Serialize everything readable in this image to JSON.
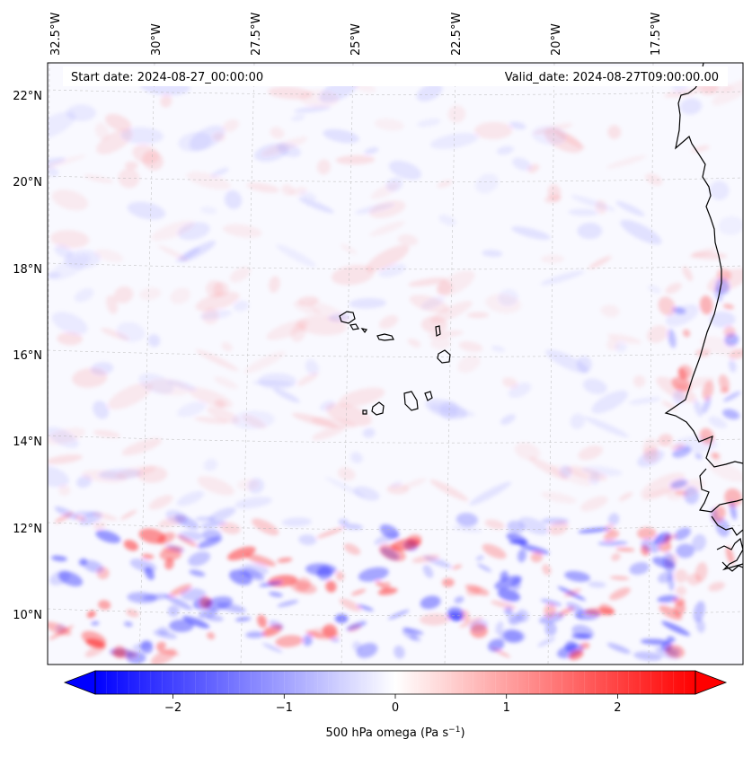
{
  "map": {
    "start_date": "Start date: 2024-08-27_00:00:00",
    "valid_date": "Valid_date: 2024-08-27T09:00:00.00",
    "lon_labels": [
      "32.5°W",
      "30°W",
      "27.5°W",
      "25°W",
      "22.5°W",
      "20°W",
      "17.5°W"
    ],
    "lat_labels": [
      "22°N",
      "20°N",
      "18°N",
      "16°N",
      "14°N",
      "12°N",
      "10°N"
    ],
    "field_colors": {
      "negative": "#0000ff",
      "zero": "#ffffff",
      "positive": "#ff0000"
    }
  },
  "colorbar": {
    "label": "500 hPa omega (Pa s",
    "label_superscript": "−1",
    "label_suffix": ")",
    "min": -2.7,
    "max": 2.7,
    "ticks": [
      {
        "value": -2,
        "label": "−2"
      },
      {
        "value": -1,
        "label": "−1"
      },
      {
        "value": 0,
        "label": "0"
      },
      {
        "value": 1,
        "label": "1"
      },
      {
        "value": 2,
        "label": "2"
      }
    ]
  }
}
